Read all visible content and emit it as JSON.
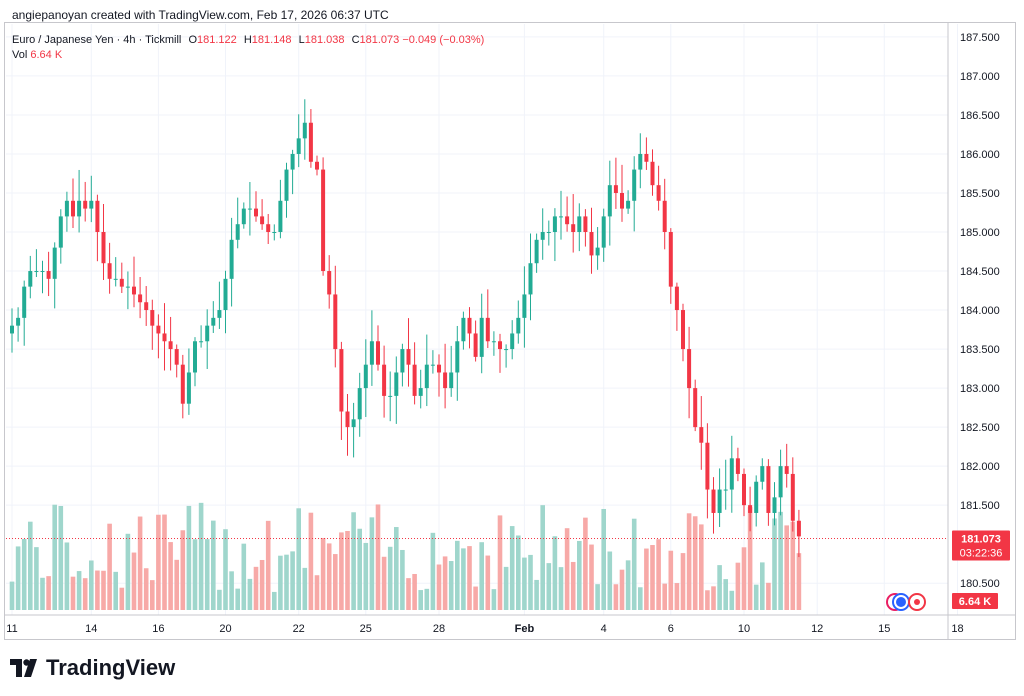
{
  "header": {
    "attribution": "angiepanoyan created with TradingView.com, Feb 17, 2026 06:37 UTC"
  },
  "legend": {
    "symbol": "Euro / Japanese Yen · 4h · Tickmill",
    "o_label": "O",
    "o_value": "181.122",
    "h_label": "H",
    "h_value": "181.148",
    "l_label": "L",
    "l_value": "181.038",
    "c_label": "C",
    "c_value": "181.073",
    "change": "−0.049 (−0.03%)",
    "vol_label": "Vol",
    "vol_value": "6.64 K"
  },
  "price_badge": {
    "price": "181.073",
    "countdown": "03:22:36"
  },
  "vol_badge": "6.64 K",
  "brand": {
    "name": "TradingView"
  },
  "colors": {
    "up": "#22ab94",
    "down": "#f23645",
    "vol_up": "#9fd6cc",
    "vol_down": "#f7a9a7",
    "grid": "#f0f3fa",
    "axis_text": "#131722"
  },
  "chart_data": {
    "type": "candlestick",
    "title": "Euro / Japanese Yen · 4h · Tickmill",
    "y_ticks": [
      "187.500",
      "187.000",
      "186.500",
      "186.000",
      "185.500",
      "185.000",
      "184.500",
      "184.000",
      "183.500",
      "183.000",
      "182.500",
      "182.000",
      "181.500",
      "180.500"
    ],
    "ylim": [
      180.4,
      187.55
    ],
    "x_ticks": [
      {
        "label": "11",
        "index": 0
      },
      {
        "label": "14",
        "index": 13
      },
      {
        "label": "16",
        "index": 24
      },
      {
        "label": "20",
        "index": 35
      },
      {
        "label": "22",
        "index": 47
      },
      {
        "label": "25",
        "index": 58
      },
      {
        "label": "28",
        "index": 70
      },
      {
        "label": "Feb",
        "index": 84
      },
      {
        "label": "4",
        "index": 97
      },
      {
        "label": "6",
        "index": 108
      },
      {
        "label": "10",
        "index": 120
      },
      {
        "label": "12",
        "index": 132
      },
      {
        "label": "15",
        "index": 143
      },
      {
        "label": "18",
        "index": 155
      }
    ],
    "closes": [
      183.8,
      183.9,
      184.3,
      184.5,
      184.5,
      184.5,
      184.4,
      184.8,
      185.2,
      185.4,
      185.2,
      185.4,
      185.3,
      185.4,
      185.0,
      184.6,
      184.4,
      184.4,
      184.3,
      184.3,
      184.2,
      184.1,
      184.0,
      183.8,
      183.7,
      183.6,
      183.5,
      183.3,
      182.8,
      183.2,
      183.6,
      183.6,
      183.8,
      183.9,
      184.0,
      184.4,
      184.9,
      185.1,
      185.3,
      185.3,
      185.2,
      185.1,
      185.0,
      185.0,
      185.4,
      185.8,
      186.0,
      186.2,
      186.4,
      185.9,
      185.8,
      184.5,
      184.2,
      183.5,
      182.7,
      182.5,
      182.6,
      183.0,
      183.3,
      183.6,
      183.3,
      182.9,
      182.9,
      183.2,
      183.5,
      183.3,
      182.9,
      183.0,
      183.3,
      183.3,
      183.2,
      183.0,
      183.2,
      183.6,
      183.9,
      183.7,
      183.4,
      183.9,
      183.6,
      183.6,
      183.5,
      183.5,
      183.7,
      183.9,
      184.2,
      184.6,
      184.9,
      185.0,
      185.0,
      185.2,
      185.2,
      185.1,
      185.0,
      185.2,
      185.0,
      184.7,
      184.8,
      185.2,
      185.6,
      185.5,
      185.3,
      185.4,
      185.8,
      186.0,
      185.9,
      185.6,
      185.4,
      185.0,
      184.3,
      184.0,
      183.5,
      183.0,
      182.5,
      182.3,
      181.7,
      181.4,
      181.7,
      181.7,
      182.1,
      181.9,
      181.5,
      181.4,
      181.8,
      182.0,
      181.4,
      181.6,
      182.0,
      181.9,
      181.3,
      181.1
    ],
    "candles_note": "OHLC estimated from chart; last bar O 181.122 H 181.148 L 181.038 C 181.073"
  }
}
